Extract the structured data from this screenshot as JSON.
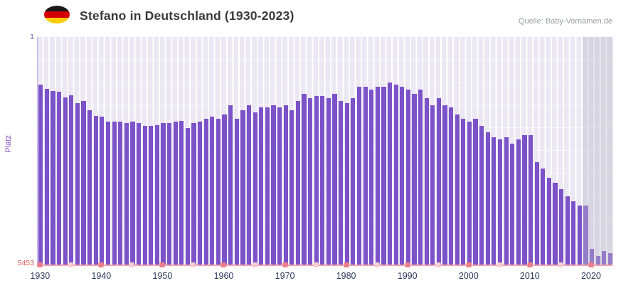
{
  "header": {
    "title": "Stefano in Deutschland (1930-2023)",
    "source": "Quelle: Baby-Vornamen.de",
    "flag_icon": "german-flag"
  },
  "y_axis": {
    "label": "Platz",
    "top_tick": "1",
    "bottom_tick": "5453"
  },
  "x_axis": {
    "tick_labels": [
      "1930",
      "1940",
      "1950",
      "1960",
      "1970",
      "1980",
      "1990",
      "2000",
      "2010",
      "2020"
    ],
    "minor_tick_step": 5
  },
  "colors": {
    "bar": "#7C52C8",
    "plot_bg": "#EBE7F3",
    "grid": "#FFFFFF",
    "baseline": "#F2A4AD",
    "decade_tick": "#EE7F88",
    "mid_tick": "#F8CDD5",
    "title": "#3A3A3A",
    "source": "#9AA0A6",
    "y_label": "#7C52C8",
    "top_tick_label": "#6B5BB0",
    "bottom_tick_label": "#E4595C",
    "x_tick_label": "#2E3B5E",
    "shade": "rgba(187,187,199,0.40)",
    "axis_border": "#C3B2E6"
  },
  "chart_data": {
    "type": "bar",
    "title": "Stefano in Deutschland (1930-2023)",
    "xlabel": "",
    "ylabel": "Platz",
    "ylim": [
      1,
      5453
    ],
    "y_inverted": true,
    "legend": false,
    "grid": true,
    "shaded_from_year": 2019,
    "years": [
      1930,
      1931,
      1932,
      1933,
      1934,
      1935,
      1936,
      1937,
      1938,
      1939,
      1940,
      1941,
      1942,
      1943,
      1944,
      1945,
      1946,
      1947,
      1948,
      1949,
      1950,
      1951,
      1952,
      1953,
      1954,
      1955,
      1956,
      1957,
      1958,
      1959,
      1960,
      1961,
      1962,
      1963,
      1964,
      1965,
      1966,
      1967,
      1968,
      1969,
      1970,
      1971,
      1972,
      1973,
      1974,
      1975,
      1976,
      1977,
      1978,
      1979,
      1980,
      1981,
      1982,
      1983,
      1984,
      1985,
      1986,
      1987,
      1988,
      1989,
      1990,
      1991,
      1992,
      1993,
      1994,
      1995,
      1996,
      1997,
      1998,
      1999,
      2000,
      2001,
      2002,
      2003,
      2004,
      2005,
      2006,
      2007,
      2008,
      2009,
      2010,
      2011,
      2012,
      2013,
      2014,
      2015,
      2016,
      2017,
      2018,
      2019,
      2020,
      2021,
      2022,
      2023
    ],
    "values": [
      1150,
      1250,
      1300,
      1320,
      1450,
      1400,
      1580,
      1530,
      1750,
      1900,
      1910,
      2020,
      2020,
      2030,
      2070,
      2020,
      2070,
      2130,
      2130,
      2120,
      2070,
      2060,
      2020,
      2010,
      2180,
      2070,
      2020,
      1960,
      1910,
      1960,
      1850,
      1640,
      1960,
      1750,
      1640,
      1800,
      1690,
      1690,
      1640,
      1690,
      1640,
      1750,
      1530,
      1360,
      1470,
      1420,
      1420,
      1470,
      1360,
      1530,
      1580,
      1470,
      1200,
      1200,
      1260,
      1200,
      1200,
      1090,
      1150,
      1200,
      1260,
      1360,
      1260,
      1470,
      1640,
      1470,
      1640,
      1690,
      1850,
      1960,
      2020,
      1960,
      2130,
      2290,
      2400,
      2450,
      2400,
      2560,
      2450,
      2350,
      2350,
      3000,
      3160,
      3380,
      3490,
      3650,
      3820,
      3930,
      4040,
      4040,
      5070,
      5240,
      5130,
      5180
    ]
  }
}
